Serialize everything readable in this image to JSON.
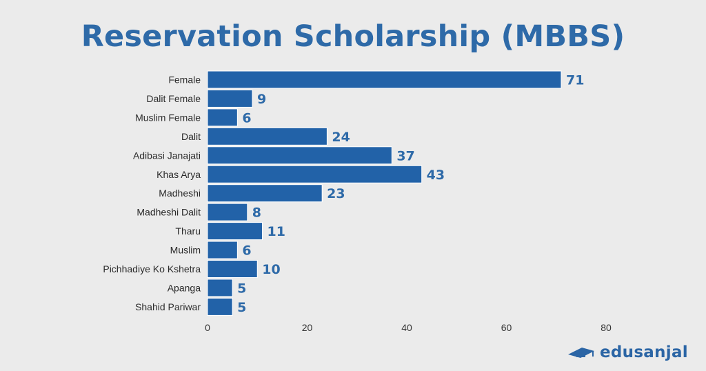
{
  "title": "Reservation Scholarship (MBBS)",
  "brand": {
    "name": "edusanjal",
    "icon": "graduation-cap-icon",
    "color": "#2b65a5"
  },
  "colors": {
    "bar": "#2262a8",
    "value_label": "#2e6aa8",
    "background": "#ebebeb"
  },
  "chart_data": {
    "type": "bar",
    "orientation": "horizontal",
    "title": "Reservation Scholarship (MBBS)",
    "categories": [
      "Female",
      "Dalit Female",
      "Muslim Female",
      "Dalit",
      "Adibasi Janajati",
      "Khas Arya",
      "Madheshi",
      "Madheshi Dalit",
      "Tharu",
      "Muslim",
      "Pichhadiye Ko Kshetra",
      "Apanga",
      "Shahid Pariwar"
    ],
    "values": [
      71,
      9,
      6,
      24,
      37,
      43,
      23,
      8,
      11,
      6,
      10,
      5,
      5
    ],
    "xticks": [
      0,
      20,
      40,
      60,
      80
    ],
    "xlim": [
      0,
      80
    ],
    "grid": false,
    "data_labels": true
  }
}
